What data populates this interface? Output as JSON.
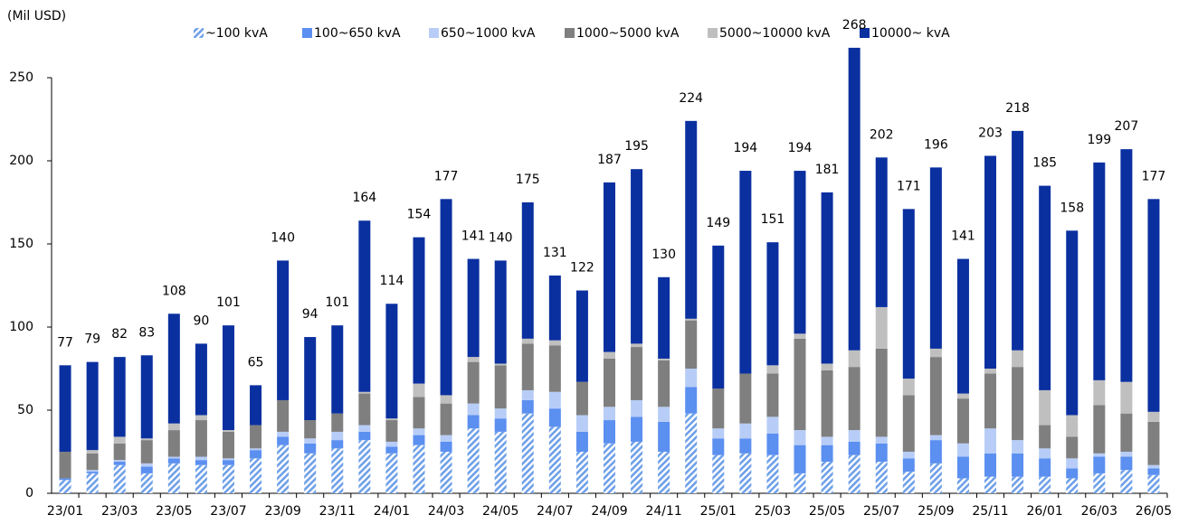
{
  "chart_data": {
    "type": "stacked-bar",
    "y_axis_unit": "(Mil USD)",
    "categories": [
      "23/01",
      null,
      "23/03",
      null,
      "23/05",
      null,
      "23/07",
      null,
      "23/09",
      null,
      "23/11",
      null,
      "24/01",
      null,
      "24/03",
      null,
      "24/05",
      null,
      "24/07",
      null,
      "24/09",
      null,
      "24/11",
      null,
      "25/01",
      null,
      "25/03",
      null,
      "25/05",
      null,
      "25/07",
      null,
      "25/09",
      null,
      "25/11",
      null,
      "26/01",
      null,
      "26/03",
      null,
      "26/05"
    ],
    "series": [
      {
        "name": "~100 kvA",
        "color": "#6fa0e8",
        "hatch": true,
        "values": [
          8,
          12,
          17,
          12,
          18,
          17,
          17,
          21,
          29,
          24,
          27,
          32,
          24,
          29,
          25,
          39,
          37,
          48,
          40,
          25,
          30,
          31,
          25,
          48,
          23,
          24,
          23,
          12,
          19,
          23,
          19,
          13,
          18,
          9,
          10,
          10,
          10,
          9,
          12,
          14,
          11
        ]
      },
      {
        "name": "100~650 kvA",
        "color": "#5b8ff0",
        "values": [
          1,
          1,
          2,
          4,
          3,
          3,
          3,
          5,
          5,
          6,
          5,
          5,
          4,
          6,
          6,
          8,
          8,
          8,
          11,
          12,
          14,
          15,
          18,
          16,
          10,
          9,
          13,
          17,
          10,
          8,
          11,
          8,
          14,
          13,
          14,
          14,
          11,
          6,
          10,
          8,
          4
        ]
      },
      {
        "name": "650~1000 kvA",
        "color": "#b7cdf7",
        "values": [
          0,
          1,
          1,
          2,
          1,
          2,
          1,
          1,
          3,
          3,
          5,
          4,
          3,
          4,
          4,
          7,
          6,
          6,
          10,
          10,
          8,
          10,
          9,
          11,
          6,
          9,
          10,
          9,
          5,
          7,
          4,
          4,
          3,
          8,
          15,
          8,
          6,
          6,
          2,
          3,
          2
        ]
      },
      {
        "name": "1000~5000 kvA",
        "color": "#7f7f7f",
        "values": [
          16,
          10,
          10,
          14,
          16,
          22,
          16,
          14,
          19,
          11,
          11,
          19,
          13,
          19,
          19,
          25,
          26,
          28,
          28,
          20,
          29,
          32,
          28,
          29,
          24,
          30,
          26,
          55,
          40,
          38,
          53,
          34,
          47,
          27,
          33,
          44,
          14,
          13,
          29,
          23,
          26
        ]
      },
      {
        "name": "5000~10000 kvA",
        "color": "#bfbfbf",
        "values": [
          0,
          2,
          4,
          1,
          4,
          3,
          1,
          0,
          0,
          0,
          0,
          1,
          1,
          8,
          5,
          3,
          1,
          3,
          3,
          0,
          4,
          2,
          1,
          1,
          0,
          0,
          5,
          3,
          4,
          10,
          25,
          10,
          5,
          3,
          3,
          10,
          21,
          13,
          15,
          19,
          6
        ]
      },
      {
        "name": "10000~ kvA",
        "color": "#0a30a0",
        "values": [
          52,
          53,
          48,
          50,
          66,
          43,
          63,
          24,
          84,
          50,
          53,
          103,
          69,
          88,
          118,
          59,
          62,
          82,
          39,
          55,
          102,
          105,
          49,
          119,
          86,
          122,
          74,
          98,
          103,
          182,
          90,
          102,
          109,
          81,
          128,
          132,
          123,
          111,
          131,
          140,
          128
        ]
      }
    ],
    "totals": [
      77,
      79,
      82,
      83,
      108,
      90,
      101,
      65,
      140,
      94,
      101,
      164,
      114,
      154,
      177,
      141,
      140,
      175,
      131,
      122,
      187,
      195,
      130,
      224,
      149,
      194,
      151,
      194,
      181,
      268,
      202,
      171,
      196,
      141,
      203,
      218,
      185,
      158,
      199,
      207,
      177
    ],
    "ylim": [
      0,
      250
    ],
    "yticks": [
      0,
      50,
      100,
      150,
      200,
      250
    ],
    "grid": false
  }
}
